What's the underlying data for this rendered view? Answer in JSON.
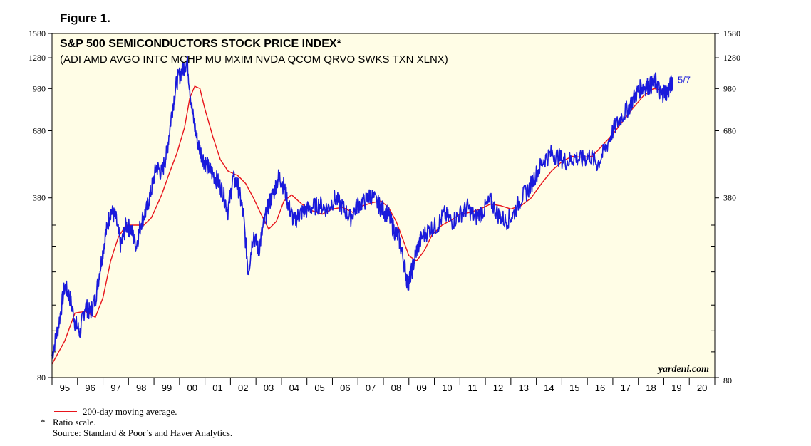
{
  "figure_label": "Figure 1.",
  "footnotes": {
    "legend_label": "200-day moving average.",
    "asterisk": "*",
    "ratio_note": "Ratio scale.",
    "source": "Source: Standard & Poor’s and Haver Analytics."
  },
  "colors": {
    "plot_background": "#fffde6",
    "price_line": "#1a1adb",
    "moving_average": "#e8141b",
    "annotation": "#1a1adb"
  },
  "chart_data": {
    "type": "line",
    "title": "S&P 500 SEMICONDUCTORS STOCK PRICE INDEX*",
    "subtitle": "(ADI AMD AVGO INTC MCHP MU MXIM NVDA QCOM QRVO SWKS TXN XLNX)",
    "yscale": "log",
    "ylim": [
      80,
      1580
    ],
    "xlim": [
      1995,
      2021
    ],
    "y_ticks": [
      80,
      380,
      680,
      980,
      1280,
      1580
    ],
    "x_tick_labels": [
      "95",
      "96",
      "97",
      "98",
      "99",
      "00",
      "01",
      "02",
      "03",
      "04",
      "05",
      "06",
      "07",
      "08",
      "09",
      "10",
      "11",
      "12",
      "13",
      "14",
      "15",
      "16",
      "17",
      "18",
      "19",
      "20"
    ],
    "watermark": "yardeni.com",
    "end_annotation": "5/7",
    "series": [
      {
        "name": "S&P 500 Semiconductors",
        "x": [
          1995.0,
          1995.25,
          1995.5,
          1995.7,
          1995.9,
          1996.1,
          1996.3,
          1996.5,
          1996.7,
          1996.9,
          1997.1,
          1997.3,
          1997.5,
          1997.7,
          1997.9,
          1998.1,
          1998.3,
          1998.5,
          1998.7,
          1998.9,
          1999.1,
          1999.3,
          1999.5,
          1999.7,
          1999.9,
          2000.1,
          2000.3,
          2000.5,
          2000.7,
          2000.9,
          2001.1,
          2001.3,
          2001.5,
          2001.7,
          2001.9,
          2002.1,
          2002.3,
          2002.5,
          2002.7,
          2002.9,
          2003.1,
          2003.3,
          2003.5,
          2003.7,
          2003.9,
          2004.1,
          2004.3,
          2004.5,
          2004.7,
          2004.9,
          2005.2,
          2005.5,
          2005.8,
          2006.1,
          2006.4,
          2006.7,
          2007.0,
          2007.3,
          2007.5,
          2007.8,
          2008.0,
          2008.2,
          2008.4,
          2008.6,
          2008.8,
          2008.95,
          2009.1,
          2009.3,
          2009.5,
          2009.8,
          2010.1,
          2010.4,
          2010.7,
          2011.0,
          2011.3,
          2011.6,
          2011.9,
          2012.2,
          2012.5,
          2012.8,
          2013.1,
          2013.4,
          2013.7,
          2014.0,
          2014.3,
          2014.6,
          2014.9,
          2015.2,
          2015.5,
          2015.8,
          2016.1,
          2016.4,
          2016.7,
          2017.0,
          2017.3,
          2017.6,
          2017.9,
          2018.1,
          2018.3,
          2018.5,
          2018.7,
          2018.9,
          2019.0,
          2019.15,
          2019.3,
          2019.35
        ],
        "values": [
          97,
          125,
          178,
          160,
          130,
          118,
          150,
          140,
          158,
          210,
          275,
          340,
          320,
          250,
          300,
          290,
          250,
          310,
          340,
          410,
          500,
          470,
          560,
          800,
          1050,
          1150,
          1250,
          800,
          620,
          540,
          500,
          470,
          440,
          400,
          340,
          450,
          420,
          330,
          200,
          280,
          240,
          300,
          360,
          400,
          460,
          420,
          350,
          310,
          330,
          340,
          350,
          360,
          345,
          380,
          350,
          320,
          360,
          370,
          390,
          360,
          340,
          330,
          290,
          270,
          220,
          180,
          200,
          240,
          270,
          290,
          300,
          330,
          310,
          330,
          350,
          320,
          340,
          370,
          330,
          310,
          330,
          380,
          410,
          470,
          530,
          560,
          540,
          520,
          540,
          530,
          550,
          510,
          580,
          680,
          760,
          830,
          930,
          990,
          1000,
          1010,
          1050,
          920,
          960,
          950,
          1030,
          1060
        ]
      },
      {
        "name": "200-day moving average",
        "x": [
          1995.0,
          1995.5,
          1995.9,
          1996.3,
          1996.7,
          1997.0,
          1997.3,
          1997.6,
          1997.9,
          1998.3,
          1998.6,
          1998.9,
          1999.3,
          1999.6,
          1999.9,
          2000.2,
          2000.4,
          2000.6,
          2000.8,
          2001.0,
          2001.3,
          2001.6,
          2001.9,
          2002.3,
          2002.6,
          2002.9,
          2003.2,
          2003.5,
          2003.8,
          2004.1,
          2004.4,
          2004.8,
          2005.2,
          2005.6,
          2006.0,
          2006.4,
          2006.8,
          2007.2,
          2007.6,
          2007.9,
          2008.2,
          2008.5,
          2008.8,
          2009.0,
          2009.3,
          2009.6,
          2009.9,
          2010.3,
          2010.7,
          2011.0,
          2011.4,
          2011.8,
          2012.2,
          2012.6,
          2013.0,
          2013.4,
          2013.8,
          2014.2,
          2014.6,
          2015.0,
          2015.4,
          2015.8,
          2016.2,
          2016.6,
          2017.0,
          2017.4,
          2017.8,
          2018.2,
          2018.6,
          2018.9,
          2019.1,
          2019.35
        ],
        "values": [
          90,
          110,
          140,
          142,
          135,
          160,
          220,
          270,
          300,
          300,
          300,
          320,
          390,
          470,
          560,
          700,
          900,
          1000,
          980,
          820,
          650,
          530,
          480,
          460,
          430,
          380,
          330,
          290,
          310,
          370,
          390,
          360,
          340,
          330,
          345,
          350,
          335,
          355,
          365,
          370,
          350,
          310,
          260,
          230,
          220,
          240,
          275,
          300,
          315,
          330,
          335,
          345,
          360,
          355,
          345,
          355,
          380,
          430,
          480,
          520,
          545,
          540,
          545,
          600,
          660,
          740,
          830,
          920,
          980,
          970,
          960,
          980
        ]
      }
    ]
  }
}
